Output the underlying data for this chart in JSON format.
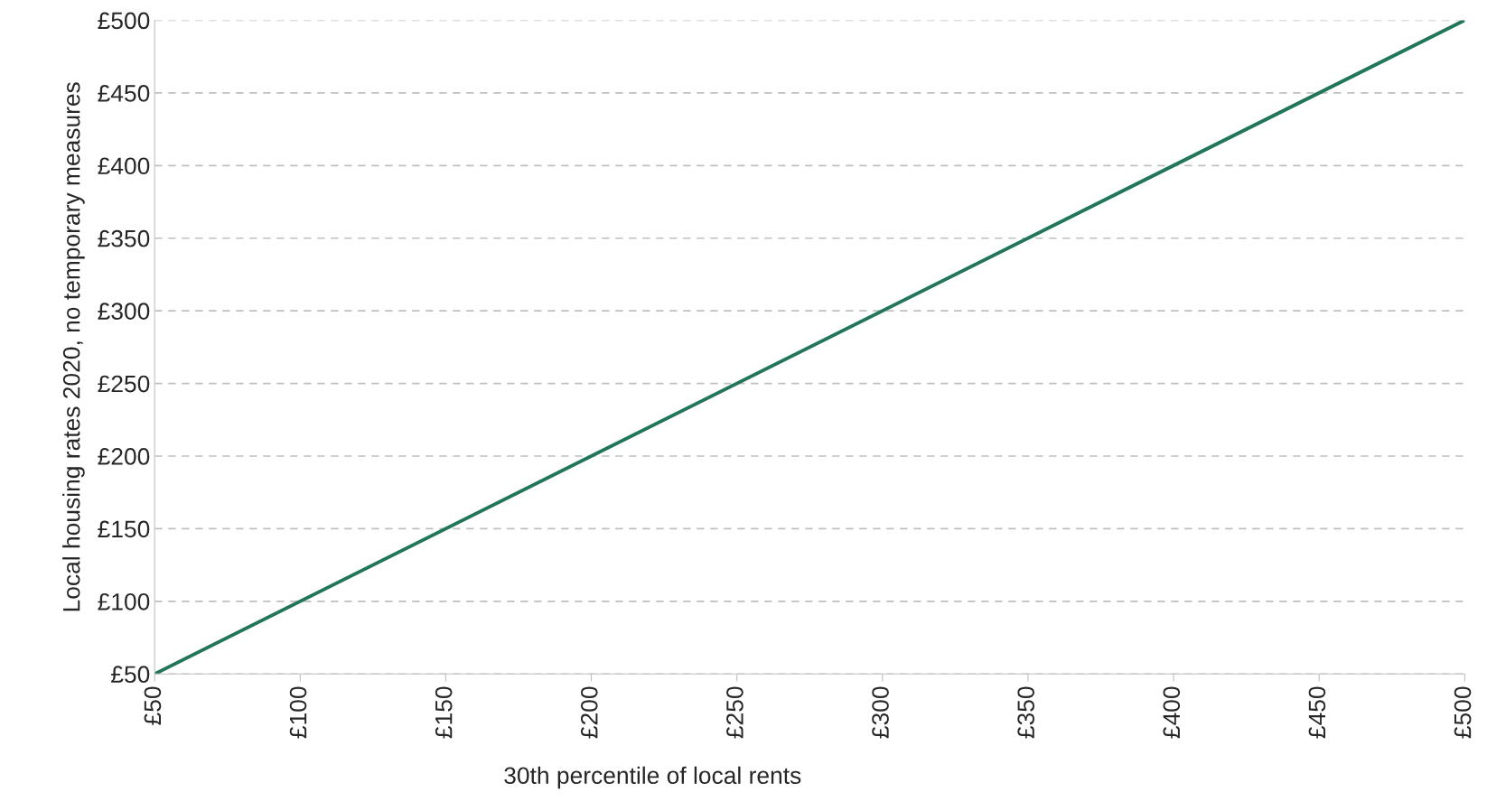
{
  "chart_data": {
    "type": "line",
    "xlabel": "30th percentile of local rents",
    "ylabel": "Local housing rates 2020, no temporary measures",
    "x": [
      50,
      500
    ],
    "series": [
      {
        "color": "#21765a",
        "values": [
          50,
          500
        ]
      }
    ],
    "xlim": [
      50,
      500
    ],
    "ylim": [
      50,
      500
    ],
    "xticks": [
      {
        "value": 50,
        "label": "£50"
      },
      {
        "value": 100,
        "label": "£100"
      },
      {
        "value": 150,
        "label": "£150"
      },
      {
        "value": 200,
        "label": "£200"
      },
      {
        "value": 250,
        "label": "£250"
      },
      {
        "value": 300,
        "label": "£300"
      },
      {
        "value": 350,
        "label": "£350"
      },
      {
        "value": 400,
        "label": "£400"
      },
      {
        "value": 450,
        "label": "£450"
      },
      {
        "value": 500,
        "label": "£500"
      }
    ],
    "yticks": [
      {
        "value": 50,
        "label": "£50"
      },
      {
        "value": 100,
        "label": "£100"
      },
      {
        "value": 150,
        "label": "£150"
      },
      {
        "value": 200,
        "label": "£200"
      },
      {
        "value": 250,
        "label": "£250"
      },
      {
        "value": 300,
        "label": "£300"
      },
      {
        "value": 350,
        "label": "£350"
      },
      {
        "value": 400,
        "label": "£400"
      },
      {
        "value": 450,
        "label": "£450"
      },
      {
        "value": 500,
        "label": "£500"
      }
    ],
    "grid": "y",
    "line_style": "solid",
    "marker": "none"
  }
}
